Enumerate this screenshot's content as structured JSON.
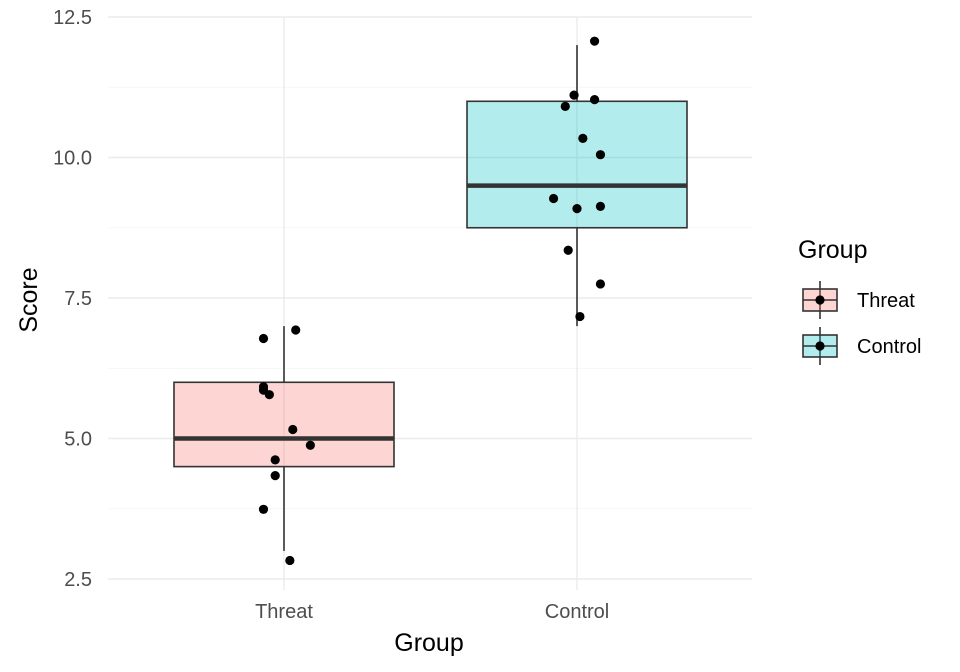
{
  "chart_data": {
    "type": "boxplot",
    "title": "",
    "xlabel": "Group",
    "ylabel": "Score",
    "ylim": [
      2.5,
      12.5
    ],
    "yticks": [
      "2.5",
      "5.0",
      "7.5",
      "10.0",
      "12.5"
    ],
    "categories": [
      "Threat",
      "Control"
    ],
    "legend": {
      "title": "Group",
      "position": "right",
      "entries": [
        "Threat",
        "Control"
      ]
    },
    "colors": {
      "Threat": "#f8766d",
      "Control": "#00bfc4",
      "median": "#333333",
      "point": "#000000"
    },
    "boxes": [
      {
        "group": "Threat",
        "whisker_low": 3.0,
        "q1": 4.5,
        "median": 5.0,
        "q3": 6.0,
        "whisker_high": 7.0
      },
      {
        "group": "Control",
        "whisker_low": 7.0,
        "q1": 8.75,
        "median": 9.5,
        "q3": 11.0,
        "whisker_high": 12.0
      }
    ],
    "points": [
      {
        "group": "Threat",
        "jitter": -0.07,
        "y": 6.78
      },
      {
        "group": "Threat",
        "jitter": 0.04,
        "y": 6.93
      },
      {
        "group": "Threat",
        "jitter": -0.07,
        "y": 5.92
      },
      {
        "group": "Threat",
        "jitter": -0.07,
        "y": 5.86
      },
      {
        "group": "Threat",
        "jitter": -0.05,
        "y": 5.78
      },
      {
        "group": "Threat",
        "jitter": 0.03,
        "y": 5.16
      },
      {
        "group": "Threat",
        "jitter": 0.09,
        "y": 4.88
      },
      {
        "group": "Threat",
        "jitter": -0.03,
        "y": 4.62
      },
      {
        "group": "Threat",
        "jitter": -0.03,
        "y": 4.34
      },
      {
        "group": "Threat",
        "jitter": -0.07,
        "y": 3.74
      },
      {
        "group": "Threat",
        "jitter": 0.02,
        "y": 2.83
      },
      {
        "group": "Control",
        "jitter": 0.06,
        "y": 12.07
      },
      {
        "group": "Control",
        "jitter": -0.01,
        "y": 11.11
      },
      {
        "group": "Control",
        "jitter": 0.06,
        "y": 11.03
      },
      {
        "group": "Control",
        "jitter": -0.04,
        "y": 10.91
      },
      {
        "group": "Control",
        "jitter": 0.02,
        "y": 10.34
      },
      {
        "group": "Control",
        "jitter": 0.08,
        "y": 10.05
      },
      {
        "group": "Control",
        "jitter": -0.08,
        "y": 9.27
      },
      {
        "group": "Control",
        "jitter": 0.08,
        "y": 9.13
      },
      {
        "group": "Control",
        "jitter": 0.0,
        "y": 9.09
      },
      {
        "group": "Control",
        "jitter": -0.03,
        "y": 8.35
      },
      {
        "group": "Control",
        "jitter": 0.08,
        "y": 7.75
      },
      {
        "group": "Control",
        "jitter": 0.01,
        "y": 7.17
      }
    ]
  }
}
